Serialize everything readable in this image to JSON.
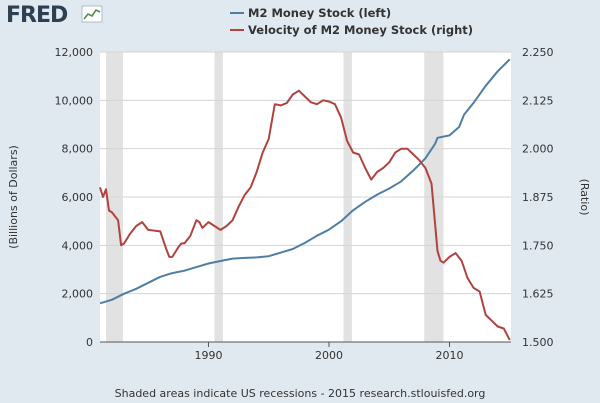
{
  "brand": {
    "logo_text": "FRED"
  },
  "footer": {
    "text": "Shaded areas indicate US recessions - 2015 research.stlouisfed.org"
  },
  "colors": {
    "background": "#e1e9f0",
    "plot_bg": "#ffffff",
    "m2": "#4f7ea5",
    "velocity": "#b1433f",
    "recession": "#e2e2e2",
    "grid": "#d5d5d5"
  },
  "chart_data": {
    "type": "line",
    "xlim": [
      1981,
      2015.1
    ],
    "x_ticks": [
      "1990",
      "2000",
      "2010"
    ],
    "x_tick_values": [
      1990,
      2000,
      2010
    ],
    "left_axis": {
      "label": "(Billions of Dollars)",
      "ylim": [
        0,
        12000
      ],
      "ticks": [
        "0",
        "2,000",
        "4,000",
        "6,000",
        "8,000",
        "10,000",
        "12,000"
      ],
      "tick_values": [
        0,
        2000,
        4000,
        6000,
        8000,
        10000,
        12000
      ]
    },
    "right_axis": {
      "label": "(Ratio)",
      "ylim": [
        1.5,
        2.25
      ],
      "ticks": [
        "1.500",
        "1.625",
        "1.750",
        "1.875",
        "2.000",
        "2.125",
        "2.250"
      ],
      "tick_values": [
        1.5,
        1.625,
        1.75,
        1.875,
        2.0,
        2.125,
        2.25
      ]
    },
    "recessions": [
      [
        1981.5,
        1982.9
      ],
      [
        1990.5,
        1991.2
      ],
      [
        2001.2,
        2001.9
      ],
      [
        2007.9,
        2009.5
      ]
    ],
    "series": [
      {
        "name": "M2 Money Stock (left)",
        "axis": "left",
        "points": [
          [
            1981,
            1600
          ],
          [
            1982,
            1750
          ],
          [
            1983,
            2000
          ],
          [
            1984,
            2200
          ],
          [
            1985,
            2450
          ],
          [
            1986,
            2700
          ],
          [
            1987,
            2850
          ],
          [
            1988,
            2950
          ],
          [
            1989,
            3100
          ],
          [
            1990,
            3250
          ],
          [
            1991,
            3350
          ],
          [
            1992,
            3450
          ],
          [
            1993,
            3480
          ],
          [
            1994,
            3500
          ],
          [
            1995,
            3550
          ],
          [
            1996,
            3700
          ],
          [
            1997,
            3850
          ],
          [
            1998,
            4100
          ],
          [
            1999,
            4400
          ],
          [
            2000,
            4650
          ],
          [
            2001,
            5000
          ],
          [
            2002,
            5450
          ],
          [
            2003,
            5800
          ],
          [
            2004,
            6100
          ],
          [
            2005,
            6350
          ],
          [
            2006,
            6650
          ],
          [
            2007,
            7100
          ],
          [
            2008,
            7600
          ],
          [
            2008.8,
            8200
          ],
          [
            2009,
            8450
          ],
          [
            2010,
            8550
          ],
          [
            2010.8,
            8900
          ],
          [
            2011.2,
            9400
          ],
          [
            2012,
            9900
          ],
          [
            2013,
            10600
          ],
          [
            2014,
            11200
          ],
          [
            2015,
            11700
          ]
        ]
      },
      {
        "name": "Velocity of M2 Money Stock (right)",
        "axis": "right",
        "points": [
          [
            1981,
            1.9
          ],
          [
            1981.25,
            1.875
          ],
          [
            1981.5,
            1.895
          ],
          [
            1981.75,
            1.84
          ],
          [
            1982,
            1.835
          ],
          [
            1982.5,
            1.815
          ],
          [
            1982.75,
            1.75
          ],
          [
            1983,
            1.755
          ],
          [
            1983.5,
            1.78
          ],
          [
            1984,
            1.8
          ],
          [
            1984.5,
            1.81
          ],
          [
            1985,
            1.79
          ],
          [
            1985.5,
            1.788
          ],
          [
            1986,
            1.786
          ],
          [
            1986.5,
            1.74
          ],
          [
            1986.75,
            1.72
          ],
          [
            1987,
            1.72
          ],
          [
            1987.5,
            1.745
          ],
          [
            1987.75,
            1.755
          ],
          [
            1988,
            1.755
          ],
          [
            1988.5,
            1.775
          ],
          [
            1989,
            1.815
          ],
          [
            1989.25,
            1.81
          ],
          [
            1989.5,
            1.795
          ],
          [
            1990,
            1.81
          ],
          [
            1990.5,
            1.8
          ],
          [
            1991,
            1.79
          ],
          [
            1991.5,
            1.8
          ],
          [
            1992,
            1.815
          ],
          [
            1992.5,
            1.85
          ],
          [
            1993,
            1.88
          ],
          [
            1993.5,
            1.9
          ],
          [
            1994,
            1.94
          ],
          [
            1994.5,
            1.99
          ],
          [
            1995,
            2.025
          ],
          [
            1995.5,
            2.115
          ],
          [
            1996,
            2.112
          ],
          [
            1996.5,
            2.118
          ],
          [
            1997,
            2.14
          ],
          [
            1997.5,
            2.15
          ],
          [
            1998,
            2.135
          ],
          [
            1998.5,
            2.12
          ],
          [
            1999,
            2.115
          ],
          [
            1999.5,
            2.125
          ],
          [
            2000,
            2.122
          ],
          [
            2000.5,
            2.115
          ],
          [
            2001,
            2.08
          ],
          [
            2001.5,
            2.02
          ],
          [
            2002,
            1.99
          ],
          [
            2002.5,
            1.985
          ],
          [
            2003,
            1.95
          ],
          [
            2003.5,
            1.92
          ],
          [
            2004,
            1.94
          ],
          [
            2004.5,
            1.95
          ],
          [
            2005,
            1.965
          ],
          [
            2005.5,
            1.99
          ],
          [
            2006,
            2.0
          ],
          [
            2006.5,
            2.0
          ],
          [
            2007,
            1.985
          ],
          [
            2007.5,
            1.97
          ],
          [
            2008,
            1.95
          ],
          [
            2008.5,
            1.91
          ],
          [
            2009,
            1.735
          ],
          [
            2009.25,
            1.71
          ],
          [
            2009.5,
            1.705
          ],
          [
            2010,
            1.72
          ],
          [
            2010.5,
            1.73
          ],
          [
            2011,
            1.71
          ],
          [
            2011.5,
            1.665
          ],
          [
            2012,
            1.64
          ],
          [
            2012.5,
            1.63
          ],
          [
            2013,
            1.57
          ],
          [
            2013.5,
            1.555
          ],
          [
            2014,
            1.54
          ],
          [
            2014.5,
            1.535
          ],
          [
            2015,
            1.505
          ]
        ]
      }
    ]
  }
}
